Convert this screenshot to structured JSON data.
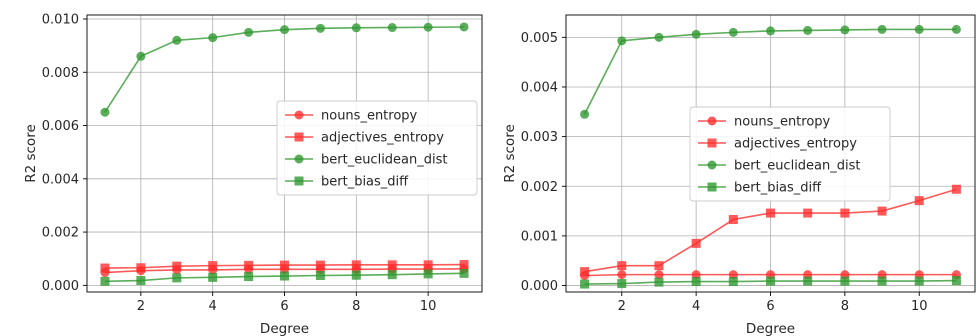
{
  "chart_data": [
    {
      "type": "line",
      "title": "",
      "xlabel": "Degree",
      "ylabel": "R2 score",
      "xlim": [
        0.5,
        11.5
      ],
      "ylim": [
        -0.00025,
        0.01015
      ],
      "xticks": [
        2,
        4,
        6,
        8,
        10
      ],
      "yticks": [
        0.0,
        0.002,
        0.004,
        0.006,
        0.008,
        0.01
      ],
      "ytick_labels": [
        "0.000",
        "0.002",
        "0.004",
        "0.006",
        "0.008",
        "0.010"
      ],
      "grid": true,
      "legend": "center-right",
      "x": [
        1,
        2,
        3,
        4,
        5,
        6,
        7,
        8,
        9,
        10,
        11
      ],
      "series": [
        {
          "name": "nouns_entropy",
          "color": "#ff2a2a",
          "marker": "circle",
          "values": [
            0.00048,
            0.00055,
            0.00058,
            0.00058,
            0.0006,
            0.0006,
            0.0006,
            0.0006,
            0.00061,
            0.00061,
            0.00062
          ]
        },
        {
          "name": "adjectives_entropy",
          "color": "#ff2a2a",
          "marker": "square",
          "values": [
            0.00065,
            0.00066,
            0.00072,
            0.00074,
            0.00075,
            0.00076,
            0.00076,
            0.00077,
            0.00077,
            0.00077,
            0.00078
          ]
        },
        {
          "name": "bert_euclidean_dist",
          "color": "#2b962b",
          "marker": "circle",
          "values": [
            0.0065,
            0.0086,
            0.0092,
            0.0093,
            0.0095,
            0.0096,
            0.00965,
            0.00967,
            0.00968,
            0.00969,
            0.0097
          ]
        },
        {
          "name": "bert_bias_diff",
          "color": "#2b962b",
          "marker": "square",
          "values": [
            0.00015,
            0.00018,
            0.00028,
            0.0003,
            0.00033,
            0.00035,
            0.00037,
            0.00038,
            0.0004,
            0.00043,
            0.00045
          ]
        }
      ]
    },
    {
      "type": "line",
      "title": "",
      "xlabel": "Degree",
      "ylabel": "R2 score",
      "xlim": [
        0.5,
        11.5
      ],
      "ylim": [
        -0.00013,
        0.00545
      ],
      "xticks": [
        2,
        4,
        6,
        8,
        10
      ],
      "yticks": [
        0.0,
        0.001,
        0.002,
        0.003,
        0.004,
        0.005
      ],
      "ytick_labels": [
        "0.000",
        "0.001",
        "0.002",
        "0.003",
        "0.004",
        "0.005"
      ],
      "grid": true,
      "legend": "center",
      "x": [
        1,
        2,
        3,
        4,
        5,
        6,
        7,
        8,
        9,
        10,
        11
      ],
      "series": [
        {
          "name": "nouns_entropy",
          "color": "#ff2a2a",
          "marker": "circle",
          "values": [
            0.0002,
            0.00022,
            0.00022,
            0.00022,
            0.00022,
            0.00022,
            0.00022,
            0.00022,
            0.00022,
            0.00022,
            0.00022
          ]
        },
        {
          "name": "adjectives_entropy",
          "color": "#ff2a2a",
          "marker": "square",
          "values": [
            0.00028,
            0.0004,
            0.0004,
            0.00085,
            0.00133,
            0.00146,
            0.00146,
            0.00146,
            0.0015,
            0.00171,
            0.00194
          ]
        },
        {
          "name": "bert_euclidean_dist",
          "color": "#2b962b",
          "marker": "circle",
          "values": [
            0.00345,
            0.00493,
            0.005,
            0.00506,
            0.0051,
            0.00513,
            0.00514,
            0.00515,
            0.00516,
            0.00516,
            0.00516
          ]
        },
        {
          "name": "bert_bias_diff",
          "color": "#2b962b",
          "marker": "square",
          "values": [
            3e-05,
            4e-05,
            7e-05,
            8e-05,
            8e-05,
            9e-05,
            9e-05,
            9e-05,
            9e-05,
            9e-05,
            0.0001
          ]
        }
      ]
    }
  ]
}
